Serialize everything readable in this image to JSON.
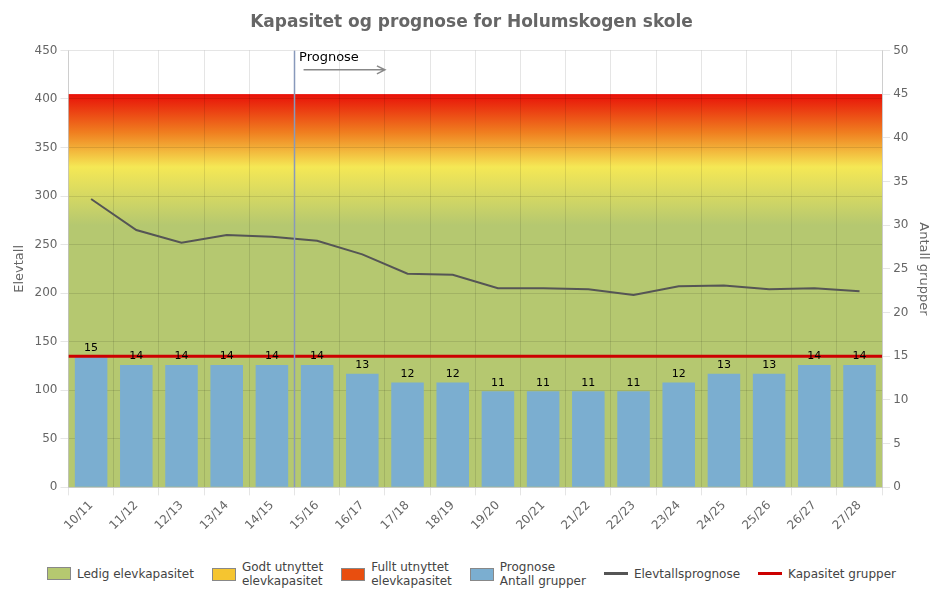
{
  "chart_data": {
    "type": "bar",
    "title": "Kapasitet og prognose for Holumskogen skole",
    "categories": [
      "10/11",
      "11/12",
      "12/13",
      "13/14",
      "14/15",
      "15/16",
      "16/17",
      "17/18",
      "18/19",
      "19/20",
      "20/21",
      "21/22",
      "22/23",
      "23/24",
      "24/25",
      "25/26",
      "26/27",
      "27/28"
    ],
    "series": [
      {
        "name": "Prognose\nAntall grupper",
        "type": "bar",
        "axis": "y2",
        "color": "#7baed0",
        "data_labels": true,
        "values": [
          15,
          14,
          14,
          14,
          14,
          14,
          13,
          12,
          12,
          11,
          11,
          11,
          11,
          12,
          13,
          13,
          14,
          14
        ]
      },
      {
        "name": "Elevtallsprognose",
        "type": "line",
        "color": "#555555",
        "values": [
          297,
          265,
          252,
          260,
          258,
          254,
          240,
          220,
          219,
          205,
          205,
          204,
          198,
          207,
          208,
          204,
          205,
          202
        ]
      }
    ],
    "reference_lines": [
      {
        "name": "Kapasitet grupper",
        "value": 135,
        "color": "#cc0000"
      }
    ],
    "background_bands": [
      {
        "value": 0,
        "color": "#b5c870"
      },
      {
        "value": 270,
        "color": "#b5c870"
      },
      {
        "value": 330,
        "color": "#f5e855"
      },
      {
        "value": 365,
        "color": "#f08020"
      },
      {
        "value": 405,
        "color": "#e81008"
      }
    ],
    "legend_patches": [
      {
        "name": "Ledig elevkapasitet",
        "color": "#b5c870"
      },
      {
        "name": "Godt utnyttet\nelevkapasitet",
        "color": "#f5c530"
      },
      {
        "name": "Fullt utnyttet\nelevkapasitet",
        "color": "#e84e0f"
      }
    ],
    "vertical_line": {
      "category": "15/16",
      "color": "#8899bb"
    },
    "annotations": [
      {
        "text": "Prognose",
        "category": "15/16",
        "y": 436,
        "arrow_y": 430
      }
    ],
    "ylabel": "Elevtall",
    "y2label": "Antall grupper",
    "ylim": [
      0,
      450
    ],
    "yticks": [
      0,
      50,
      100,
      150,
      200,
      250,
      300,
      350,
      400,
      450
    ],
    "y2lim": [
      0,
      50
    ],
    "y2ticks": [
      0,
      5,
      10,
      15,
      20,
      25,
      30,
      35,
      40,
      45,
      50
    ],
    "grid": true
  }
}
